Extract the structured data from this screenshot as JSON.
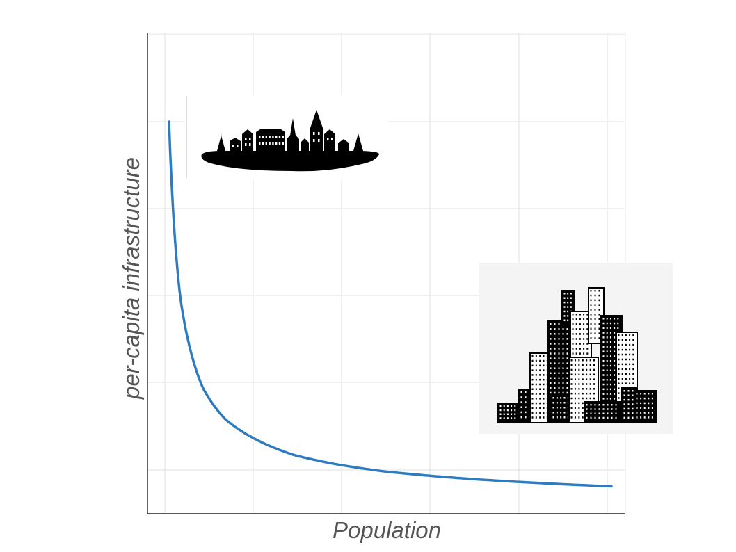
{
  "chart_data": {
    "type": "line",
    "title": "",
    "xlabel": "Population",
    "ylabel": "per-capita infrastructure",
    "x_tick_labels": [],
    "y_tick_labels": [],
    "grid": true,
    "legend": "none",
    "series": [
      {
        "color": "#2f7bbf",
        "points": [
          [
            0.025,
            1.0
          ],
          [
            0.05,
            0.55
          ],
          [
            0.1,
            0.32
          ],
          [
            0.15,
            0.24
          ],
          [
            0.2,
            0.2
          ],
          [
            0.3,
            0.15
          ],
          [
            0.4,
            0.125
          ],
          [
            0.5,
            0.108
          ],
          [
            0.6,
            0.097
          ],
          [
            0.7,
            0.088
          ],
          [
            0.8,
            0.081
          ],
          [
            0.9,
            0.075
          ],
          [
            1.0,
            0.07
          ]
        ]
      }
    ],
    "images": [
      {
        "icon": "village-skyline-icon",
        "position": "top-left"
      },
      {
        "icon": "city-skyline-icon",
        "position": "right"
      }
    ]
  }
}
